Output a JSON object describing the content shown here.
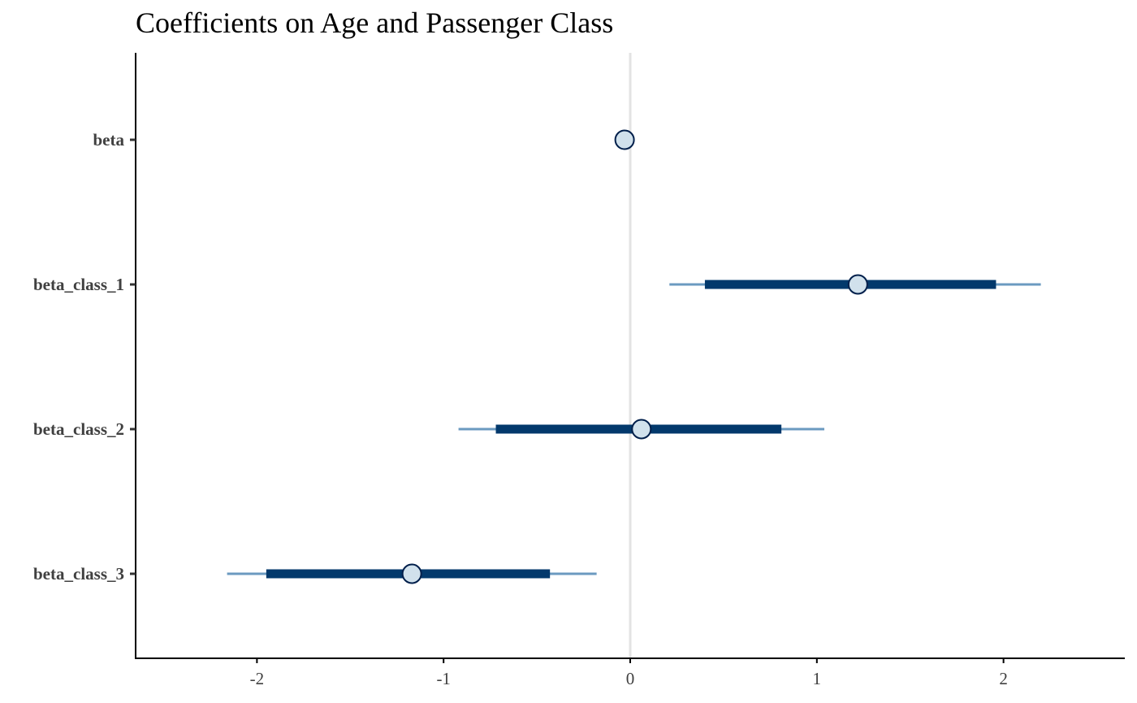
{
  "chart_data": {
    "type": "interval",
    "title": "Coefficients on Age and Passenger Class",
    "xlabel": "",
    "ylabel": "",
    "xlim": [
      -2.65,
      2.65
    ],
    "x_ticks": [
      "-2",
      "-1",
      "0",
      "1",
      "2"
    ],
    "reference_line_x": 0,
    "grid": false,
    "legend": "none",
    "parameters": [
      {
        "name": "beta",
        "median": -0.03,
        "inner": [
          -0.03,
          -0.03
        ],
        "outer": [
          -0.03,
          -0.03
        ]
      },
      {
        "name": "beta_class_1",
        "median": 1.22,
        "inner": [
          0.4,
          1.96
        ],
        "outer": [
          0.21,
          2.2
        ]
      },
      {
        "name": "beta_class_2",
        "median": 0.06,
        "inner": [
          -0.72,
          0.81
        ],
        "outer": [
          -0.92,
          1.04
        ]
      },
      {
        "name": "beta_class_3",
        "median": -1.17,
        "inner": [
          -1.95,
          -0.43
        ],
        "outer": [
          -2.16,
          -0.18
        ]
      }
    ],
    "colors": {
      "outer_line": "#6b9ac0",
      "inner_line": "#03396c",
      "point_fill": "#d1e1ec",
      "point_stroke": "#011f4b",
      "zero_line": "#e3e3e3",
      "axis": "#000000"
    }
  }
}
